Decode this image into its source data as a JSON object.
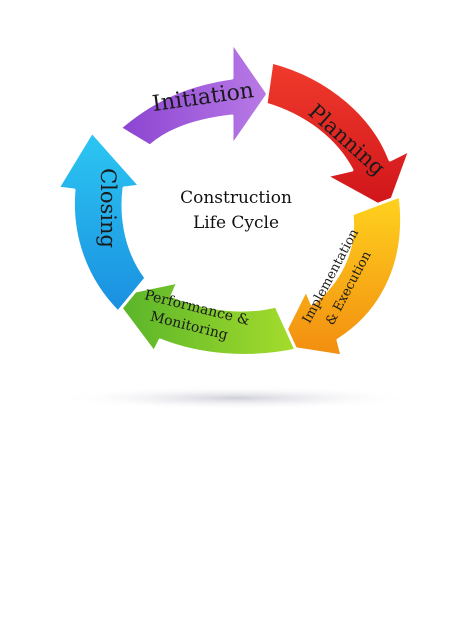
{
  "diagram": {
    "center_title_line1": "Construction",
    "center_title_line2": "Life Cycle",
    "stages": [
      {
        "label": "Initiation",
        "color": "#9b59d6"
      },
      {
        "label": "Planning",
        "color": "#e8231f"
      },
      {
        "label_line1": "Implementation",
        "label_line2": "& Execution",
        "color": "#f7b21a"
      },
      {
        "label_line1": "Performance &",
        "label_line2": "Monitoring",
        "color": "#7cc82a"
      },
      {
        "label": "Closing",
        "color": "#1ea9ec"
      }
    ]
  }
}
